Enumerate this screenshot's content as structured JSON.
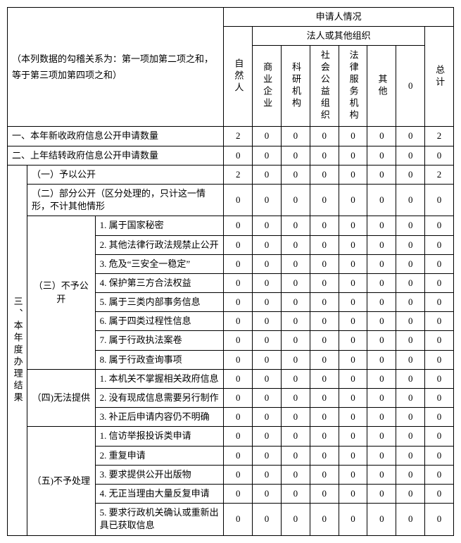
{
  "header": {
    "note": "（本列数据的勾稽关系为：第一项加第二项之和，等于第三项加第四项之和）",
    "applicant": "申请人情况",
    "natural_person": "自然人",
    "legal_group": "法人或其他组织",
    "total": "总计",
    "legal_cols": [
      "商业企业",
      "科研机构",
      "社会公益组织",
      "法律服务机构",
      "其他"
    ]
  },
  "sections": {
    "one": "一、本年新收政府信息公开申请数量",
    "two": "二、上年结转政府信息公开申请数量",
    "three_label": "三、本年度办理结果",
    "s1": "（一）予以公开",
    "s2": "（二）部分公开（区分处理的，只计这一情形，不计其他情形",
    "s3_label": "（三）不予公开",
    "s3_items": [
      "1. 属于国家秘密",
      "2. 其他法律行政法规禁止公开",
      "3. 危及“三安全一稳定”",
      "4. 保护第三方合法权益",
      "5. 属于三类内部事务信息",
      "6. 属于四类过程性信息",
      "7. 属于行政执法案卷",
      "8. 属于行政查询事项"
    ],
    "s4_label": "（四)无法提供",
    "s4_items": [
      "1. 本机关不掌握相关政府信息",
      "2. 没有现成信息需要另行制作",
      "3. 补正后申请内容仍不明确"
    ],
    "s5_label": "（五)不予处理",
    "s5_items": [
      "1. 信访举报投诉类申请",
      "2. 重复申请",
      "3. 要求提供公开出版物",
      "4. 无正当理由大量反复申请",
      "5. 要求行政机关确认或重新出具已获取信息"
    ]
  },
  "rows": {
    "one": [
      "2",
      "0",
      "0",
      "0",
      "0",
      "0",
      "0",
      "2"
    ],
    "two": [
      "0",
      "0",
      "0",
      "0",
      "0",
      "0",
      "0",
      "0"
    ],
    "s1": [
      "2",
      "0",
      "0",
      "0",
      "0",
      "0",
      "0",
      "2"
    ],
    "s2": [
      "0",
      "0",
      "0",
      "0",
      "0",
      "0",
      "0",
      "0"
    ],
    "s3": [
      [
        "0",
        "0",
        "0",
        "0",
        "0",
        "0",
        "0",
        "0"
      ],
      [
        "0",
        "0",
        "0",
        "0",
        "0",
        "0",
        "0",
        "0"
      ],
      [
        "0",
        "0",
        "0",
        "0",
        "0",
        "0",
        "0",
        "0"
      ],
      [
        "0",
        "0",
        "0",
        "0",
        "0",
        "0",
        "0",
        "0"
      ],
      [
        "0",
        "0",
        "0",
        "0",
        "0",
        "0",
        "0",
        "0"
      ],
      [
        "0",
        "0",
        "0",
        "0",
        "0",
        "0",
        "0",
        "0"
      ],
      [
        "0",
        "0",
        "0",
        "0",
        "0",
        "0",
        "0",
        "0"
      ],
      [
        "0",
        "0",
        "0",
        "0",
        "0",
        "0",
        "0",
        "0"
      ]
    ],
    "s4": [
      [
        "0",
        "0",
        "0",
        "0",
        "0",
        "0",
        "0",
        "0"
      ],
      [
        "0",
        "0",
        "0",
        "0",
        "0",
        "0",
        "0",
        "0"
      ],
      [
        "0",
        "0",
        "0",
        "0",
        "0",
        "0",
        "0",
        "0"
      ]
    ],
    "s5": [
      [
        "0",
        "0",
        "0",
        "0",
        "0",
        "0",
        "0",
        "0"
      ],
      [
        "0",
        "0",
        "0",
        "0",
        "0",
        "0",
        "0",
        "0"
      ],
      [
        "0",
        "0",
        "0",
        "0",
        "0",
        "0",
        "0",
        "0"
      ],
      [
        "0",
        "0",
        "0",
        "0",
        "0",
        "0",
        "0",
        "0"
      ],
      [
        "0",
        "0",
        "0",
        "0",
        "0",
        "0",
        "0",
        "0"
      ]
    ]
  }
}
